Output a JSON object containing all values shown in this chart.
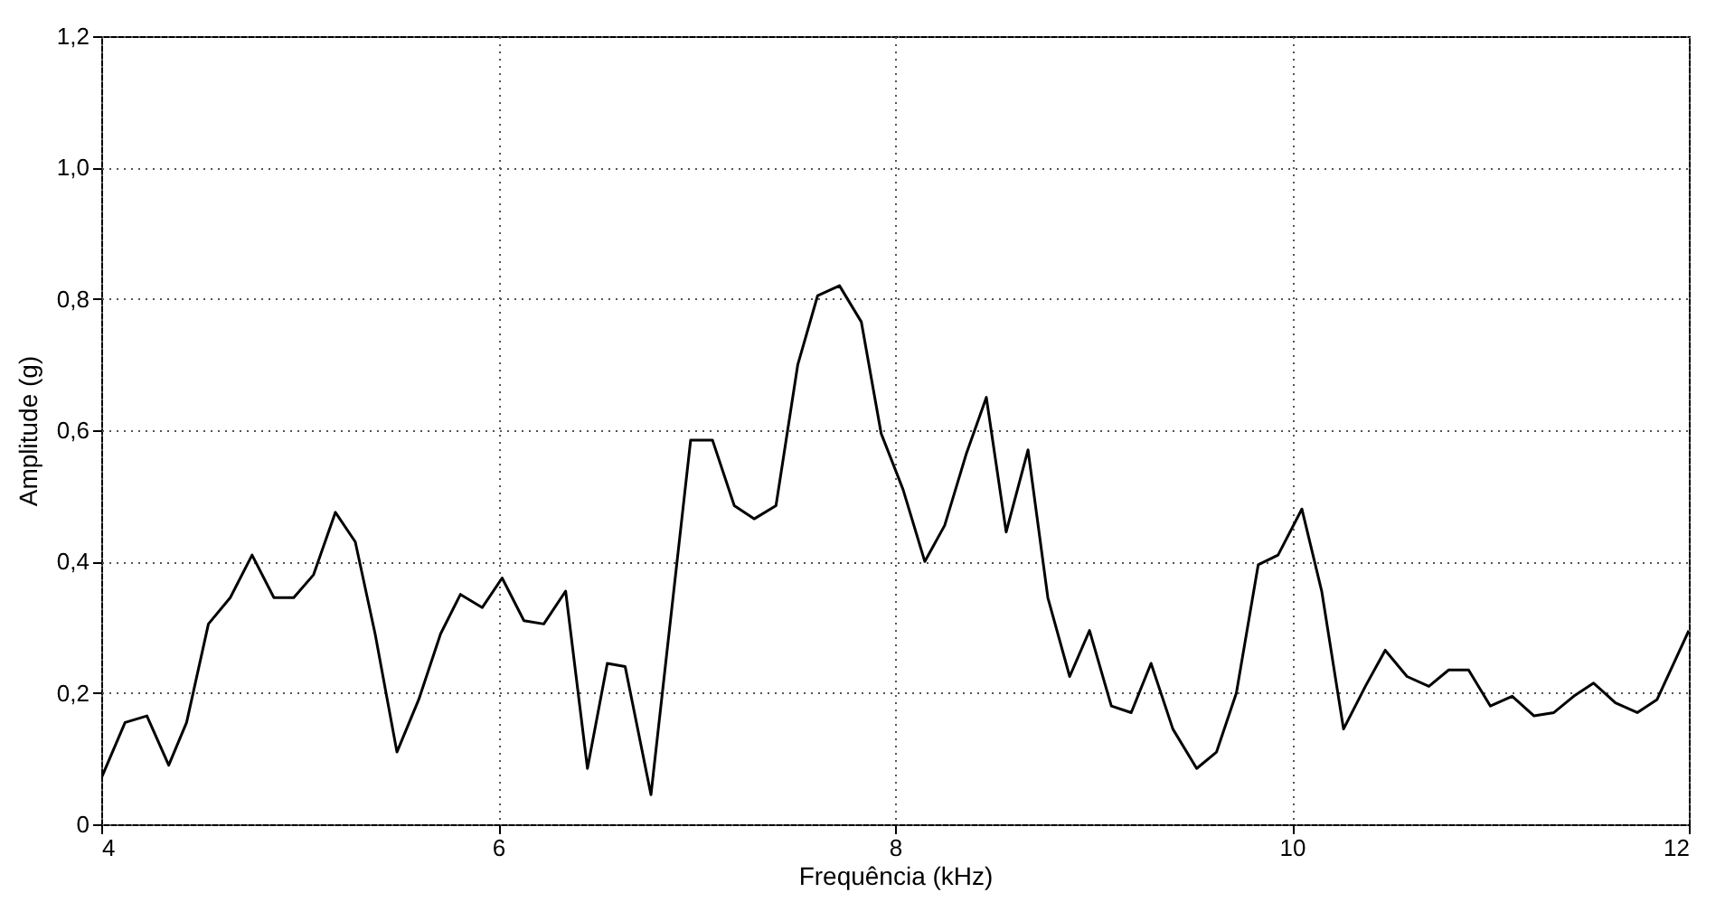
{
  "chart_data": {
    "type": "line",
    "xlabel": "Frequência (kHz)",
    "ylabel": "Amplitude (g)",
    "x": [
      4.0,
      4.12,
      4.23,
      4.34,
      4.43,
      4.54,
      4.65,
      4.76,
      4.87,
      4.97,
      5.07,
      5.18,
      5.28,
      5.38,
      5.49,
      5.6,
      5.71,
      5.81,
      5.92,
      6.02,
      6.13,
      6.23,
      6.34,
      6.45,
      6.55,
      6.64,
      6.77,
      6.97,
      7.08,
      7.19,
      7.29,
      7.4,
      7.51,
      7.61,
      7.72,
      7.83,
      7.93,
      8.04,
      8.15,
      8.25,
      8.36,
      8.46,
      8.56,
      8.67,
      8.77,
      8.88,
      8.98,
      9.09,
      9.19,
      9.29,
      9.4,
      9.52,
      9.62,
      9.72,
      9.83,
      9.93,
      10.05,
      10.15,
      10.26,
      10.37,
      10.47,
      10.58,
      10.69,
      10.79,
      10.89,
      11.0,
      11.11,
      11.22,
      11.32,
      11.42,
      11.52,
      11.63,
      11.74,
      11.84,
      12.0
    ],
    "series": [
      {
        "color": "#000000",
        "values": [
          0.07,
          0.155,
          0.165,
          0.09,
          0.155,
          0.305,
          0.345,
          0.41,
          0.345,
          0.345,
          0.38,
          0.475,
          0.43,
          0.29,
          0.11,
          0.19,
          0.29,
          0.35,
          0.33,
          0.375,
          0.31,
          0.305,
          0.355,
          0.085,
          0.245,
          0.24,
          0.045,
          0.585,
          0.585,
          0.485,
          0.465,
          0.485,
          0.7,
          0.805,
          0.82,
          0.765,
          0.595,
          0.51,
          0.4,
          0.455,
          0.565,
          0.65,
          0.445,
          0.57,
          0.345,
          0.225,
          0.295,
          0.18,
          0.17,
          0.245,
          0.145,
          0.085,
          0.11,
          0.2,
          0.395,
          0.41,
          0.48,
          0.355,
          0.145,
          0.21,
          0.265,
          0.225,
          0.21,
          0.235,
          0.235,
          0.18,
          0.195,
          0.165,
          0.17,
          0.195,
          0.215,
          0.185,
          0.17,
          0.19,
          0.295
        ]
      }
    ],
    "xlim": [
      4,
      12
    ],
    "xticks": [
      4,
      6,
      8,
      10,
      12
    ],
    "ylim": [
      0,
      1.2
    ],
    "yticks": [
      0,
      {
        "value": 0.2,
        "label": "0,2"
      },
      {
        "value": 0.4,
        "label": "0,4"
      },
      {
        "value": 0.6,
        "label": "0,6"
      },
      {
        "value": 0.8,
        "label": "0,8"
      },
      {
        "value": 1.0,
        "label": "1,0"
      },
      {
        "value": 1.2,
        "label": "1,2"
      }
    ],
    "grid": true,
    "line_style": "solid"
  }
}
